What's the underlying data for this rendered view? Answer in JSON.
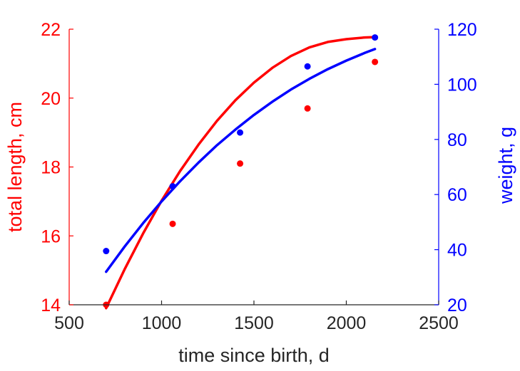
{
  "chart_data": {
    "type": "scatter",
    "xlabel": "time since birth, d",
    "ylabel_left": "total length, cm",
    "ylabel_right": "weight, g",
    "xlim": [
      500,
      2500
    ],
    "ylim_left": [
      14,
      22
    ],
    "ylim_right": [
      20,
      120
    ],
    "x_ticks": [
      500,
      1000,
      1500,
      2000,
      2500
    ],
    "y_left_ticks": [
      14,
      16,
      18,
      20,
      22
    ],
    "y_right_ticks": [
      20,
      40,
      60,
      80,
      100,
      120
    ],
    "grid": false,
    "colors": {
      "left": "#ff0000",
      "right": "#0000ff",
      "axis": "#262626"
    },
    "series": [
      {
        "axis": "left",
        "color": "#ff0000",
        "points": {
          "x": [
            700,
            1060,
            1425,
            1790,
            2155
          ],
          "y": [
            14.0,
            16.35,
            18.1,
            19.7,
            21.05
          ]
        },
        "fit": {
          "x": [
            700,
            800,
            900,
            1000,
            1100,
            1200,
            1300,
            1400,
            1500,
            1600,
            1700,
            1800,
            1900,
            2000,
            2100,
            2155
          ],
          "y": [
            13.9,
            15.03,
            16.07,
            17.02,
            17.88,
            18.65,
            19.34,
            19.94,
            20.45,
            20.88,
            21.22,
            21.47,
            21.63,
            21.71,
            21.76,
            21.77
          ]
        }
      },
      {
        "axis": "right",
        "color": "#0000ff",
        "points": {
          "x": [
            700,
            1060,
            1425,
            1790,
            2155
          ],
          "y": [
            39.5,
            63.0,
            82.5,
            106.5,
            117.0
          ]
        },
        "fit": {
          "x": [
            700,
            800,
            900,
            1000,
            1100,
            1200,
            1300,
            1400,
            1500,
            1600,
            1700,
            1800,
            1900,
            2000,
            2100,
            2155
          ],
          "y": [
            32.0,
            41.1,
            49.6,
            57.5,
            64.8,
            71.6,
            77.9,
            83.6,
            88.9,
            93.7,
            98.1,
            102.0,
            105.5,
            108.6,
            111.4,
            112.8
          ]
        }
      }
    ]
  }
}
